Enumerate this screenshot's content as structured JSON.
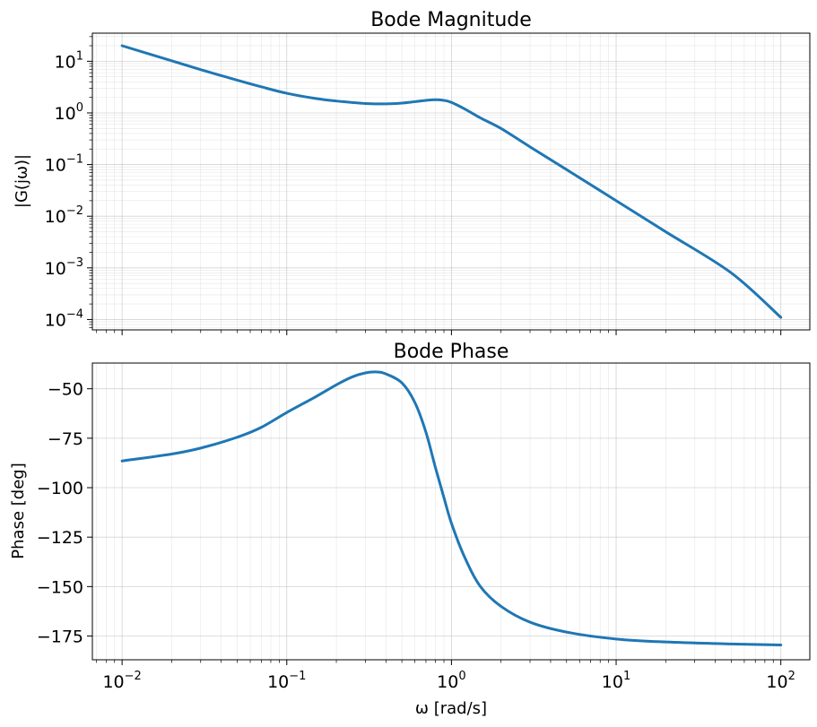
{
  "chart_data": [
    {
      "type": "line",
      "title": "Bode Magnitude",
      "ylabel": "|G(jω)|",
      "xlabel": "",
      "xscale": "log",
      "yscale": "log",
      "xlim": [
        0.0066,
        150
      ],
      "ylim": [
        6.3e-05,
        35
      ],
      "grid": true,
      "x_ticks": [
        {
          "value": 0.01,
          "base": "10",
          "exp": "−2"
        },
        {
          "value": 0.1,
          "base": "10",
          "exp": "−1"
        },
        {
          "value": 1,
          "base": "10",
          "exp": "0"
        },
        {
          "value": 10,
          "base": "10",
          "exp": "1"
        },
        {
          "value": 100,
          "base": "10",
          "exp": "2"
        }
      ],
      "y_ticks": [
        {
          "value": 10,
          "base": "10",
          "exp": "1"
        },
        {
          "value": 1,
          "base": "10",
          "exp": "0"
        },
        {
          "value": 0.1,
          "base": "10",
          "exp": "−1"
        },
        {
          "value": 0.01,
          "base": "10",
          "exp": "−2"
        },
        {
          "value": 0.001,
          "base": "10",
          "exp": "−3"
        },
        {
          "value": 0.0001,
          "base": "10",
          "exp": "−4"
        }
      ],
      "series": [
        {
          "name": "|G(jω)|",
          "color": "#1f77b4",
          "x": [
            0.01,
            0.02,
            0.03,
            0.05,
            0.07,
            0.1,
            0.15,
            0.2,
            0.3,
            0.4,
            0.5,
            0.6,
            0.7,
            0.8,
            0.9,
            1.0,
            1.2,
            1.5,
            2,
            3,
            5,
            10,
            20,
            50,
            100
          ],
          "y": [
            20,
            10.2,
            6.9,
            4.3,
            3.2,
            2.4,
            1.9,
            1.7,
            1.52,
            1.5,
            1.55,
            1.65,
            1.75,
            1.8,
            1.75,
            1.6,
            1.2,
            0.8,
            0.5,
            0.22,
            0.08,
            0.02,
            0.005,
            0.0008,
            0.00011
          ]
        }
      ]
    },
    {
      "type": "line",
      "title": "Bode Phase",
      "ylabel": "Phase [deg]",
      "xlabel": "ω [rad/s]",
      "xscale": "log",
      "yscale": "linear",
      "xlim": [
        0.0066,
        150
      ],
      "ylim": [
        -187,
        -37
      ],
      "grid": true,
      "x_ticks": [
        {
          "value": 0.01,
          "base": "10",
          "exp": "−2"
        },
        {
          "value": 0.1,
          "base": "10",
          "exp": "−1"
        },
        {
          "value": 1,
          "base": "10",
          "exp": "0"
        },
        {
          "value": 10,
          "base": "10",
          "exp": "1"
        },
        {
          "value": 100,
          "base": "10",
          "exp": "2"
        }
      ],
      "y_ticks": [
        {
          "value": -50,
          "label": "−50"
        },
        {
          "value": -75,
          "label": "−75"
        },
        {
          "value": -100,
          "label": "−100"
        },
        {
          "value": -125,
          "label": "−125"
        },
        {
          "value": -150,
          "label": "−150"
        },
        {
          "value": -175,
          "label": "−175"
        }
      ],
      "series": [
        {
          "name": "Phase",
          "color": "#1f77b4",
          "x": [
            0.01,
            0.02,
            0.03,
            0.05,
            0.07,
            0.1,
            0.15,
            0.2,
            0.25,
            0.3,
            0.35,
            0.4,
            0.5,
            0.6,
            0.7,
            0.8,
            0.9,
            1.0,
            1.2,
            1.5,
            2,
            3,
            5,
            10,
            20,
            50,
            100
          ],
          "y": [
            -86.5,
            -83,
            -80,
            -74.5,
            -69.5,
            -62,
            -54,
            -48,
            -44,
            -42,
            -41.5,
            -42.5,
            -47,
            -57,
            -72,
            -90,
            -105,
            -118,
            -135,
            -150,
            -160,
            -168,
            -173,
            -176.5,
            -178,
            -179,
            -179.5
          ]
        }
      ]
    }
  ]
}
